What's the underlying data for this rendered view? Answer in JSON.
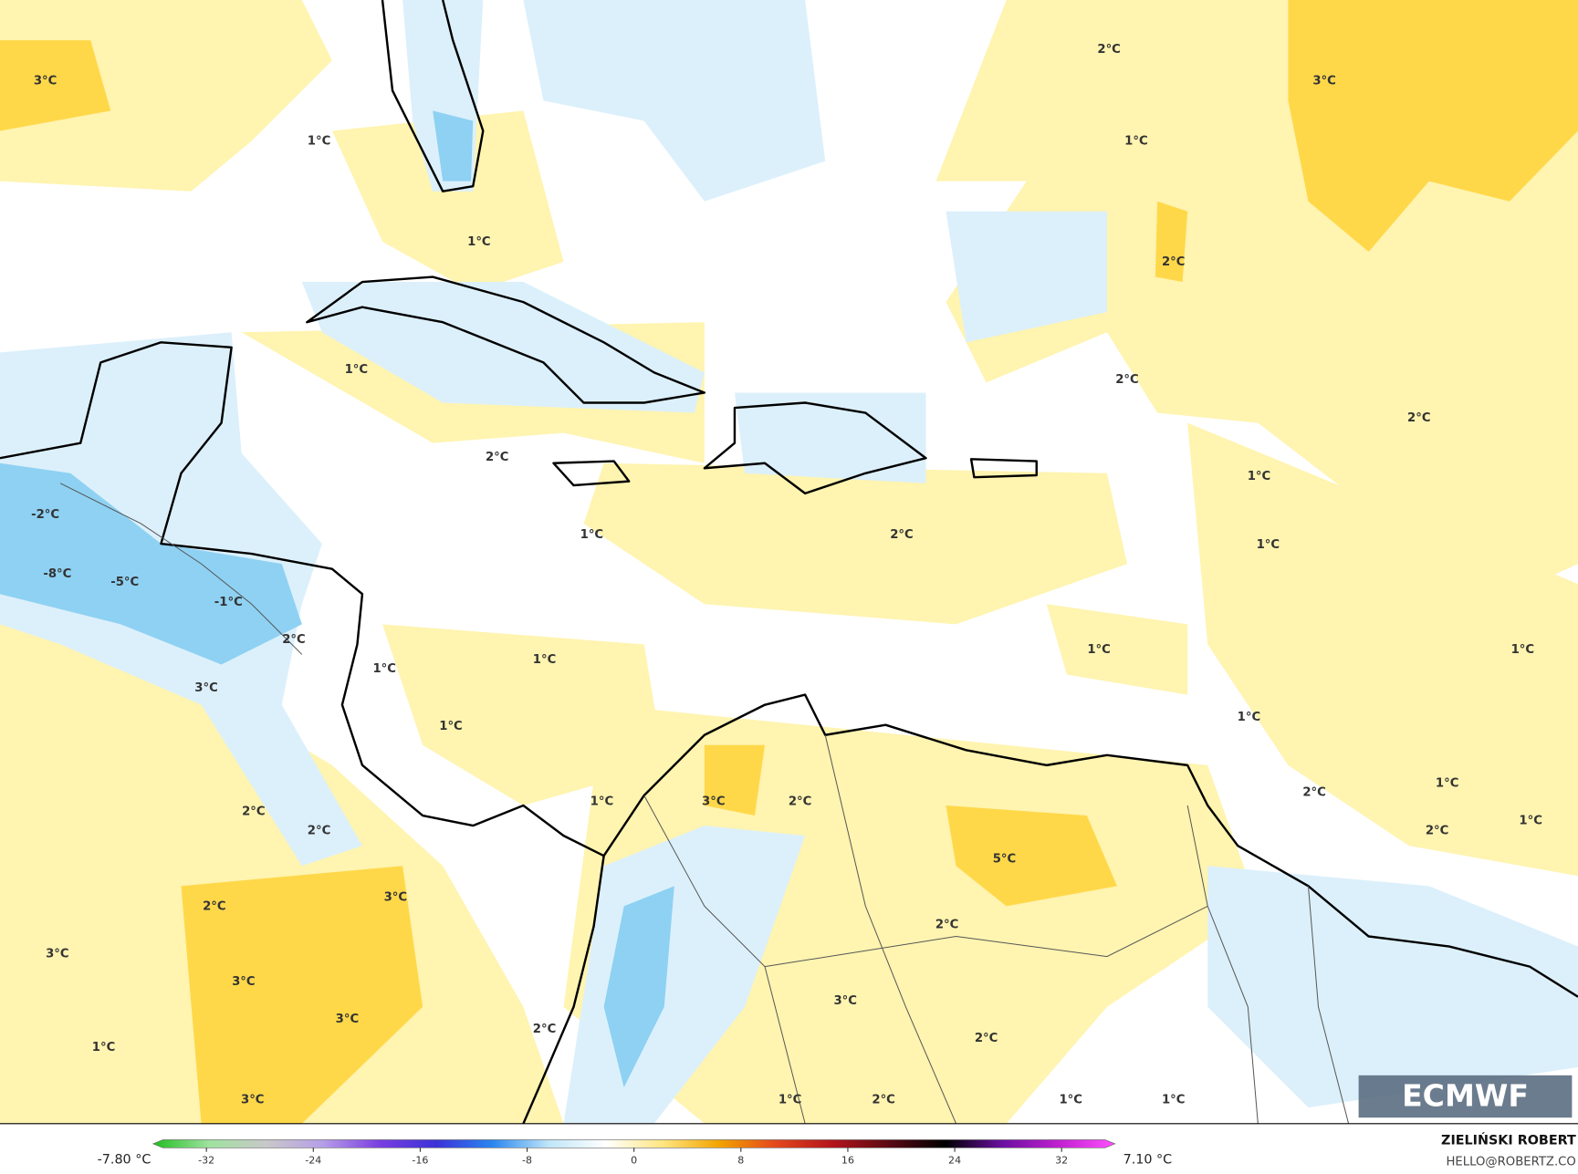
{
  "map": {
    "contour_labels": [
      "3°C",
      "1°C",
      "1°C",
      "2°C",
      "3°C",
      "1°C",
      "2°C",
      "1°C",
      "2°C",
      "2°C",
      "2°C",
      "-2°C",
      "1°C",
      "1°C",
      "2°C",
      "1°C",
      "-8°C",
      "-5°C",
      "-1°C",
      "2°C",
      "1°C",
      "1°C",
      "1°C",
      "1°C",
      "3°C",
      "1°C",
      "1°C",
      "3°C",
      "2°C",
      "1°C",
      "1°C",
      "2°C",
      "2°C",
      "2°C",
      "1°C",
      "2°C",
      "5°C",
      "3°C",
      "2°C",
      "2°C",
      "3°C",
      "3°C",
      "3°C",
      "2°C",
      "3°C",
      "2°C",
      "1°C",
      "3°C",
      "1°C",
      "2°C",
      "1°C",
      "1°C"
    ],
    "logo": "ECMWF"
  },
  "colorbar": {
    "min_label": "-7.80 °C",
    "max_label": "7.10 °C",
    "lim": [
      -36,
      36
    ],
    "ticks": [
      -32,
      -24,
      -16,
      -8,
      0,
      8,
      16,
      24,
      32
    ],
    "colors": [
      "#1fbf1f",
      "#9fe29f",
      "#c8c8c8",
      "#b69ee8",
      "#7a3ee0",
      "#3c32d8",
      "#2a86f0",
      "#bfe6f8",
      "#ffffff",
      "#ffe680",
      "#f2a400",
      "#e4481c",
      "#b4141c",
      "#5a0a14",
      "#000000",
      "#6a10a0",
      "#c020d0",
      "#ff50ff"
    ]
  },
  "credits": {
    "author": "ZIELIŃSKI ROBERT",
    "contact": "HELLO@ROBERTZ.CO"
  }
}
